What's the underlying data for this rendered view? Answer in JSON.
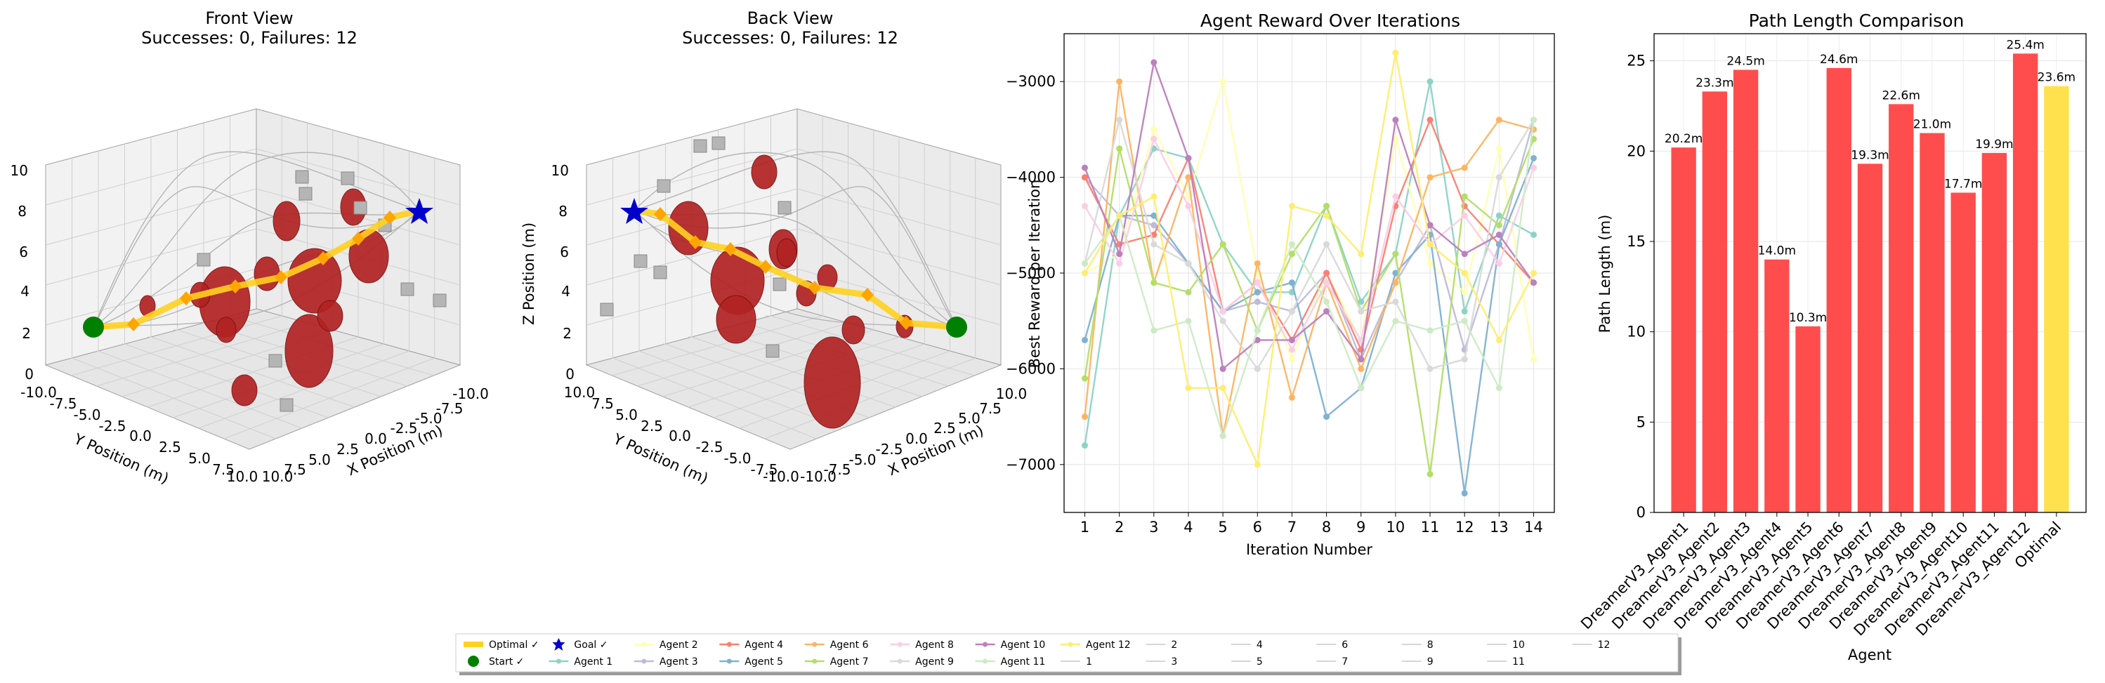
{
  "front_view": {
    "title": "Front View",
    "subtitle": "Successes: 0, Failures: 12",
    "xlabel": "X Position (m)",
    "ylabel": "Y Position (m)",
    "zticks": [
      "0",
      "2",
      "4",
      "6",
      "8",
      "10"
    ],
    "xticks": [
      "-10.0",
      "-7.5",
      "-5.0",
      "-2.5",
      "0.0",
      "2.5",
      "5.0",
      "7.5",
      "10.0"
    ],
    "yticks": [
      "-10.0",
      "-7.5",
      "-5.0",
      "-2.5",
      "0.0",
      "2.5",
      "5.0",
      "7.5",
      "10.0"
    ]
  },
  "back_view": {
    "title": "Back View",
    "subtitle": "Successes: 0, Failures: 12",
    "xlabel": "X Position (m)",
    "ylabel": "Y Position (m)",
    "zlabel": "Z Position (m)",
    "zticks": [
      "0",
      "2",
      "4",
      "6",
      "8",
      "10"
    ],
    "xticks": [
      "-10.0",
      "-7.5",
      "-5.0",
      "-2.5",
      "0.0",
      "2.5",
      "5.0",
      "7.5",
      "10.0"
    ],
    "yticks": [
      "10.0",
      "7.5",
      "5.0",
      "2.5",
      "0.0",
      "-2.5",
      "-5.0",
      "-7.5",
      "-10.0"
    ]
  },
  "colors": {
    "obstacle": "#b22222",
    "optimal": "#ffd21f",
    "waypoint": "#ffa500",
    "start": "#008000",
    "goal": "#0000cd",
    "bar_red": "#ff4d4d",
    "bar_yellow": "#ffe14d",
    "paths": "#b0b0b0"
  },
  "legend": {
    "entries": [
      {
        "label": "Optimal ✓",
        "color": "#ffd21f",
        "kind": "thick"
      },
      {
        "label": "Start ✓",
        "color": "#008000",
        "kind": "dot"
      },
      {
        "label": "Goal ✓",
        "color": "#0000cd",
        "kind": "star"
      },
      {
        "label": "Agent 1",
        "color": "#8dd3c7",
        "kind": "line"
      },
      {
        "label": "Agent 2",
        "color": "#ffffb3",
        "kind": "line"
      },
      {
        "label": "Agent 3",
        "color": "#bebada",
        "kind": "line"
      },
      {
        "label": "Agent 4",
        "color": "#fb8072",
        "kind": "line"
      },
      {
        "label": "Agent 5",
        "color": "#80b1d3",
        "kind": "line"
      },
      {
        "label": "Agent 6",
        "color": "#fdb462",
        "kind": "line"
      },
      {
        "label": "Agent 7",
        "color": "#b3de69",
        "kind": "line"
      },
      {
        "label": "Agent 8",
        "color": "#fccde5",
        "kind": "line"
      },
      {
        "label": "Agent 9",
        "color": "#d9d9d9",
        "kind": "line"
      },
      {
        "label": "Agent 10",
        "color": "#bc80bd",
        "kind": "line"
      },
      {
        "label": "Agent 11",
        "color": "#ccebc5",
        "kind": "line"
      },
      {
        "label": "Agent 12",
        "color": "#ffed6f",
        "kind": "line"
      },
      {
        "label": "1",
        "color": "#c8c8c8",
        "kind": "thin"
      },
      {
        "label": "2",
        "color": "#c8c8c8",
        "kind": "thin"
      },
      {
        "label": "3",
        "color": "#c8c8c8",
        "kind": "thin"
      },
      {
        "label": "4",
        "color": "#c8c8c8",
        "kind": "thin"
      },
      {
        "label": "5",
        "color": "#c8c8c8",
        "kind": "thin"
      },
      {
        "label": "6",
        "color": "#c8c8c8",
        "kind": "thin"
      },
      {
        "label": "7",
        "color": "#c8c8c8",
        "kind": "thin"
      },
      {
        "label": "8",
        "color": "#c8c8c8",
        "kind": "thin"
      },
      {
        "label": "9",
        "color": "#c8c8c8",
        "kind": "thin"
      },
      {
        "label": "10",
        "color": "#c8c8c8",
        "kind": "thin"
      },
      {
        "label": "11",
        "color": "#c8c8c8",
        "kind": "thin"
      },
      {
        "label": "12",
        "color": "#c8c8c8",
        "kind": "thin"
      }
    ]
  },
  "chart_data": [
    {
      "type": "line",
      "title": "Agent Reward Over Iterations",
      "xlabel": "Iteration Number",
      "ylabel": "Best Reward per Iteration",
      "x": [
        1,
        2,
        3,
        4,
        5,
        6,
        7,
        8,
        9,
        10,
        11,
        12,
        13,
        14
      ],
      "ylim": [
        -7500,
        -2500
      ],
      "yticks": [
        -3000,
        -4000,
        -5000,
        -6000,
        -7000
      ],
      "ytick_labels": [
        "−3000",
        "−4000",
        "−5000",
        "−6000",
        "−7000"
      ],
      "grid": true,
      "series": [
        {
          "name": "Agent 1",
          "color": "#8dd3c7",
          "values": [
            -6800,
            -4400,
            -3700,
            -3800,
            -4700,
            -5200,
            -5200,
            -4300,
            -5300,
            -4800,
            -3000,
            -5400,
            -4400,
            -4600
          ]
        },
        {
          "name": "Agent 2",
          "color": "#ffffb3",
          "values": [
            -5000,
            -4800,
            -3500,
            -4200,
            -3000,
            -5000,
            -5900,
            -5000,
            -5700,
            -3600,
            -4900,
            -5200,
            -3700,
            -5900
          ]
        },
        {
          "name": "Agent 3",
          "color": "#bebada",
          "values": [
            -4000,
            -4400,
            -4500,
            -4900,
            -5400,
            -5300,
            -5400,
            -5000,
            -5900,
            -5100,
            -4500,
            -5800,
            -4700,
            -3400
          ]
        },
        {
          "name": "Agent 4",
          "color": "#fb8072",
          "values": [
            -4000,
            -4700,
            -4600,
            -3800,
            -5400,
            -5100,
            -5700,
            -5000,
            -5800,
            -4300,
            -3400,
            -4300,
            -4700,
            -5100
          ]
        },
        {
          "name": "Agent 5",
          "color": "#80b1d3",
          "values": [
            -5700,
            -4400,
            -4400,
            -4900,
            -5400,
            -5200,
            -5100,
            -6500,
            -6200,
            -5000,
            -4600,
            -7300,
            -4700,
            -3800
          ]
        },
        {
          "name": "Agent 6",
          "color": "#fdb462",
          "values": [
            -6500,
            -3000,
            -5100,
            -4000,
            -6700,
            -4900,
            -6300,
            -5100,
            -6000,
            -5100,
            -4000,
            -3900,
            -3400,
            -3500
          ]
        },
        {
          "name": "Agent 7",
          "color": "#b3de69",
          "values": [
            -6100,
            -3700,
            -5100,
            -5200,
            -4700,
            -5600,
            -4800,
            -4300,
            -5400,
            -4800,
            -7100,
            -4200,
            -4500,
            -3600
          ]
        },
        {
          "name": "Agent 8",
          "color": "#fccde5",
          "values": [
            -4300,
            -4900,
            -3600,
            -4300,
            -5400,
            -5100,
            -5800,
            -5100,
            -5700,
            -4200,
            -4700,
            -4400,
            -4900,
            -3900
          ]
        },
        {
          "name": "Agent 9",
          "color": "#d9d9d9",
          "values": [
            -4900,
            -3400,
            -4700,
            -4900,
            -5500,
            -6000,
            -5400,
            -4700,
            -5400,
            -5300,
            -6000,
            -5900,
            -4000,
            -3400
          ]
        },
        {
          "name": "Agent 10",
          "color": "#bc80bd",
          "values": [
            -3900,
            -4800,
            -2800,
            -3800,
            -6000,
            -5700,
            -5700,
            -5400,
            -5900,
            -3400,
            -4500,
            -4800,
            -4600,
            -5100
          ]
        },
        {
          "name": "Agent 11",
          "color": "#ccebc5",
          "values": [
            -4900,
            -4400,
            -5600,
            -5500,
            -6700,
            -5600,
            -4700,
            -5300,
            -6200,
            -5500,
            -5600,
            -5500,
            -6200,
            -3400
          ]
        },
        {
          "name": "Agent 12",
          "color": "#ffed6f",
          "values": [
            -5000,
            -4400,
            -4200,
            -6200,
            -6200,
            -7000,
            -4300,
            -4400,
            -4800,
            -2700,
            -4700,
            -5000,
            -5700,
            -5000
          ]
        }
      ]
    },
    {
      "type": "bar",
      "title": "Path Length Comparison",
      "xlabel": "Agent",
      "ylabel": "Path Length (m)",
      "ylim": [
        0,
        26.5
      ],
      "yticks": [
        0,
        5,
        10,
        15,
        20,
        25
      ],
      "grid": true,
      "categories": [
        "DreamerV3_Agent1",
        "DreamerV3_Agent2",
        "DreamerV3_Agent3",
        "DreamerV3_Agent4",
        "DreamerV3_Agent5",
        "DreamerV3_Agent6",
        "DreamerV3_Agent7",
        "DreamerV3_Agent8",
        "DreamerV3_Agent9",
        "DreamerV3_Agent10",
        "DreamerV3_Agent11",
        "DreamerV3_Agent12",
        "Optimal"
      ],
      "values": [
        20.2,
        23.3,
        24.5,
        14.0,
        10.3,
        24.6,
        19.3,
        22.6,
        21.0,
        17.7,
        19.9,
        25.4,
        23.6
      ],
      "value_labels": [
        "20.2m",
        "23.3m",
        "24.5m",
        "14.0m",
        "10.3m",
        "24.6m",
        "19.3m",
        "22.6m",
        "21.0m",
        "17.7m",
        "19.9m",
        "25.4m",
        "23.6m"
      ],
      "bar_colors": [
        "#ff4d4d",
        "#ff4d4d",
        "#ff4d4d",
        "#ff4d4d",
        "#ff4d4d",
        "#ff4d4d",
        "#ff4d4d",
        "#ff4d4d",
        "#ff4d4d",
        "#ff4d4d",
        "#ff4d4d",
        "#ff4d4d",
        "#ffe14d"
      ]
    }
  ]
}
